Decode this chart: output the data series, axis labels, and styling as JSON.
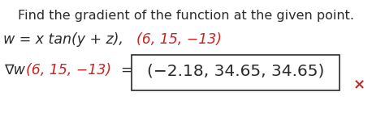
{
  "line1": "Find the gradient of the function at the given point.",
  "line2_math": "w = x tan(y + z),",
  "line2_point": "(6, 15, −13)",
  "line3_nabla": "∇w",
  "line3_point": "(6, 15, −13)",
  "line3_eq": " = ",
  "line3_answer": "(−2.18, 34.65, 34.65)",
  "red_x": "×",
  "bg_color": "#ffffff",
  "black_color": "#2b2b2b",
  "red_color": "#cc2222",
  "line1_fs": 11.5,
  "line2_fs": 12.5,
  "line3_fs": 12.5,
  "answer_fs": 14.5
}
